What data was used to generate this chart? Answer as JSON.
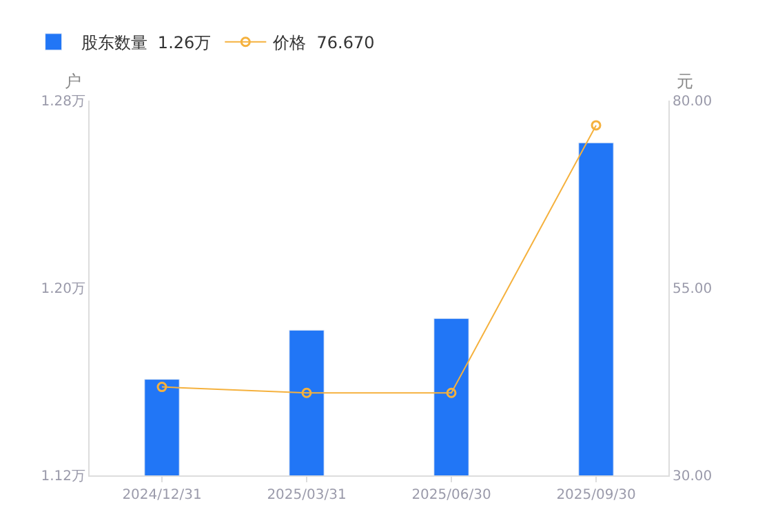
{
  "chart_data": {
    "type": "bar",
    "ylabel": "户",
    "y2label": "元",
    "categories": [
      "2024/12/31",
      "2025/03/31",
      "2025/06/30",
      "2025/09/30"
    ],
    "series": [
      {
        "name": "股东数量  1.26万",
        "color": "#2176f6",
        "values": [
          1.161,
          1.182,
          1.187,
          1.262
        ]
      },
      {
        "name": "价格  76.670",
        "type": "line",
        "axis": "y2",
        "color": "#f5b13d",
        "values": [
          41.8,
          41.0,
          41.0,
          76.7
        ]
      }
    ],
    "ylim": [
      1.12,
      1.28
    ],
    "yticks": [
      {
        "value": 1.12,
        "label": "1.12万"
      },
      {
        "value": 1.2,
        "label": "1.20万"
      },
      {
        "value": 1.28,
        "label": "1.28万"
      }
    ],
    "y2lim": [
      30,
      80
    ],
    "y2ticks": [
      {
        "value": 30,
        "label": "30.00"
      },
      {
        "value": 55,
        "label": "55.00"
      },
      {
        "value": 80,
        "label": "80.00"
      }
    ],
    "legend": "top left",
    "marker": "circle",
    "line_style": "solid"
  }
}
